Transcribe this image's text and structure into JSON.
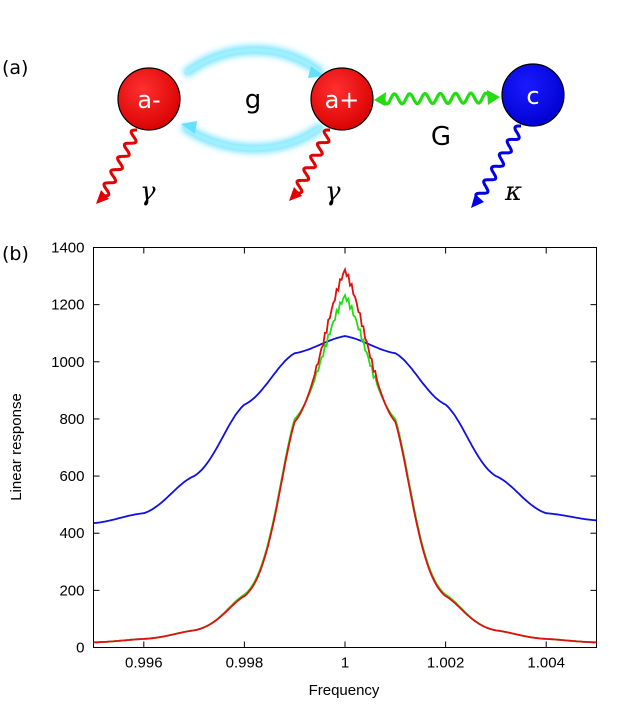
{
  "diagram": {
    "panel_label": "(a)",
    "nodes": [
      {
        "id": "a_minus",
        "label": "a-",
        "color": "#e30000"
      },
      {
        "id": "a_plus",
        "label": "a+",
        "color": "#e30000"
      },
      {
        "id": "c",
        "label": "c",
        "color": "#0000e6"
      }
    ],
    "couplings": [
      {
        "label": "g",
        "between": [
          "a_minus",
          "a_plus"
        ],
        "color": "#66e0ff"
      },
      {
        "label": "G",
        "between": [
          "a_plus",
          "c"
        ],
        "color": "#22dd11"
      }
    ],
    "decays": [
      {
        "label": "γ",
        "from": "a_minus",
        "color": "#e30000"
      },
      {
        "label": "γ",
        "from": "a_plus",
        "color": "#e30000"
      },
      {
        "label": "κ",
        "from": "c",
        "color": "#0000e6"
      }
    ]
  },
  "chart_panel_label": "(b)",
  "chart_data": {
    "type": "line",
    "xlabel": "Frequency",
    "ylabel": "Linear response",
    "xlim": [
      0.995,
      1.005
    ],
    "ylim": [
      0,
      1400
    ],
    "xticks": [
      0.996,
      0.998,
      1,
      1.002,
      1.004
    ],
    "xtick_labels": [
      "0.996",
      "0.998",
      "1",
      "1.002",
      "1.004"
    ],
    "yticks": [
      0,
      200,
      400,
      600,
      800,
      1000,
      1200,
      1400
    ],
    "ytick_labels": [
      "0",
      "200",
      "400",
      "600",
      "800",
      "1000",
      "1200",
      "1400"
    ],
    "grid": false,
    "series": [
      {
        "color": "#1010e0",
        "peak_x": 1.0,
        "values_at": {
          "0.995": 435,
          "0.996": 470,
          "0.997": 600,
          "0.998": 850,
          "0.999": 1030,
          "1": 1090,
          "1.001": 1030,
          "1.002": 850,
          "1.003": 600,
          "1.004": 470,
          "1.005": 445
        }
      },
      {
        "color": "#22dd11",
        "peak_x": 1.0,
        "values_at": {
          "0.995": 18,
          "0.996": 30,
          "0.997": 60,
          "0.998": 185,
          "0.999": 800,
          "1": 1230,
          "1.001": 800,
          "1.002": 185,
          "1.003": 60,
          "1.004": 30,
          "1.005": 18
        }
      },
      {
        "color": "#e01010",
        "peak_x": 1.0,
        "values_at": {
          "0.995": 18,
          "0.996": 30,
          "0.997": 60,
          "0.998": 180,
          "0.999": 790,
          "1": 1320,
          "1.001": 790,
          "1.002": 180,
          "1.003": 60,
          "1.004": 30,
          "1.005": 18
        }
      }
    ]
  }
}
